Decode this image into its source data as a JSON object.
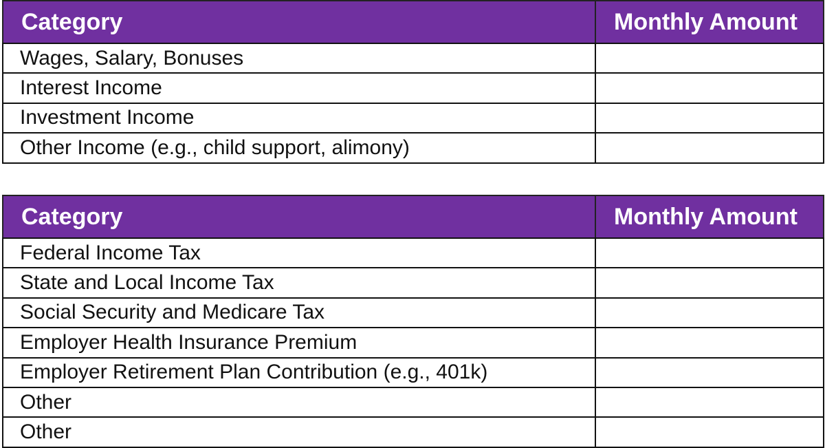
{
  "tables": [
    {
      "header": [
        "Category",
        "Monthly Amount"
      ],
      "rows": [
        "Wages, Salary, Bonuses",
        "Interest Income",
        "Investment Income",
        "Other Income (e.g., child support, alimony)"
      ]
    },
    {
      "header": [
        "Category",
        "Monthly Amount"
      ],
      "rows": [
        "Federal Income Tax",
        "State and Local Income Tax",
        "Social Security and Medicare Tax",
        "Employer Health Insurance Premium",
        "Employer Retirement Plan Contribution (e.g., 401k)",
        "Other",
        "Other"
      ]
    }
  ]
}
